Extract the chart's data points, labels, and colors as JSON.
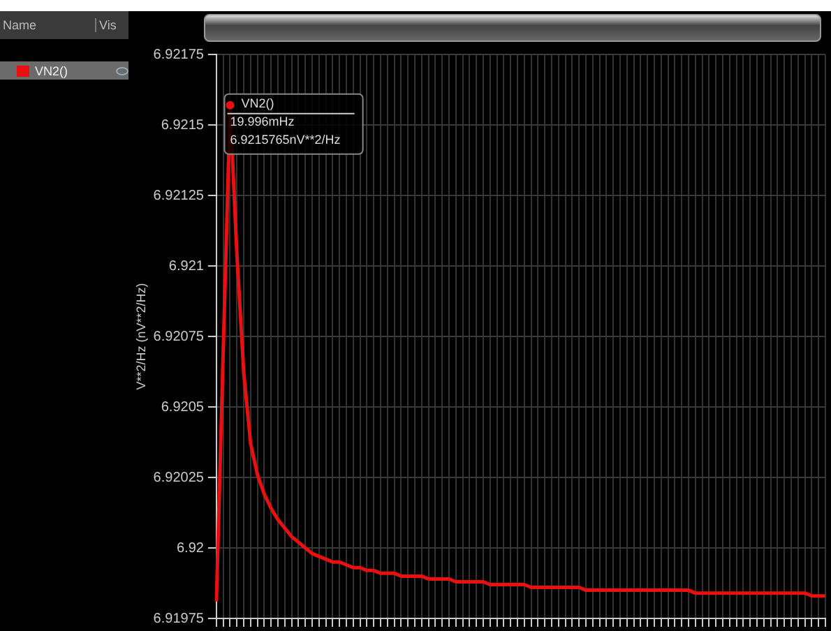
{
  "chart_data": {
    "type": "line",
    "ylabel": "V**2/Hz (nV**2/Hz)",
    "categories": [
      null,
      null,
      null,
      null,
      null,
      null,
      null,
      null,
      null,
      null,
      null,
      null,
      null,
      null,
      null,
      null,
      null,
      null,
      null,
      null,
      null,
      null,
      null,
      null,
      null,
      null,
      null,
      null,
      null,
      null,
      null,
      null,
      null,
      null,
      null,
      null,
      null,
      null,
      null,
      null,
      null,
      null,
      null,
      null,
      null,
      null,
      null,
      null,
      null,
      null,
      null,
      null,
      null,
      null,
      null,
      null,
      null,
      null,
      null,
      null,
      null,
      null,
      null,
      null,
      null,
      null,
      null,
      null,
      null,
      null,
      null,
      null,
      null,
      null,
      null,
      null,
      null,
      null,
      null,
      null,
      null,
      null,
      null,
      null,
      null,
      null,
      null,
      null,
      null,
      null
    ],
    "series": [
      {
        "name": "VN2()",
        "color": "#e81010",
        "values": [
          6.91981,
          6.9207,
          6.92157,
          6.92104,
          6.92062,
          6.92037,
          6.92026,
          6.92019,
          6.92014,
          6.9201,
          6.92007,
          6.92004,
          6.92002,
          6.92,
          6.91998,
          6.91997,
          6.91996,
          6.91995,
          6.91995,
          6.91994,
          6.91993,
          6.91993,
          6.91992,
          6.91992,
          6.91991,
          6.91991,
          6.91991,
          6.9199,
          6.9199,
          6.9199,
          6.9199,
          6.91989,
          6.91989,
          6.91989,
          6.91989,
          6.91988,
          6.91988,
          6.91988,
          6.91988,
          6.91988,
          6.91987,
          6.91987,
          6.91987,
          6.91987,
          6.91987,
          6.91987,
          6.91986,
          6.91986,
          6.91986,
          6.91986,
          6.91986,
          6.91986,
          6.91986,
          6.91986,
          6.91985,
          6.91985,
          6.91985,
          6.91985,
          6.91985,
          6.91985,
          6.91985,
          6.91985,
          6.91985,
          6.91985,
          6.91985,
          6.91985,
          6.91985,
          6.91985,
          6.91985,
          6.91985,
          6.91984,
          6.91984,
          6.91984,
          6.91984,
          6.91984,
          6.91984,
          6.91984,
          6.91984,
          6.91984,
          6.91984,
          6.91984,
          6.91984,
          6.91984,
          6.91984,
          6.91984,
          6.91984,
          6.91984,
          6.91983,
          6.91983,
          6.91983
        ]
      }
    ],
    "ylim": [
      6.91975,
      6.92175
    ],
    "yticks": [
      6.91975,
      6.92,
      6.92025,
      6.9205,
      6.92075,
      6.921,
      6.92125,
      6.9215,
      6.92175
    ],
    "legend_title": "Name",
    "annotations": [
      "Vis",
      "VN2()\n19.996mHz\n6.9215765nV**2/Hz"
    ],
    "grid": true,
    "legend": "left",
    "tick_labels": "y",
    "marker": "none",
    "line_style": "solid"
  }
}
